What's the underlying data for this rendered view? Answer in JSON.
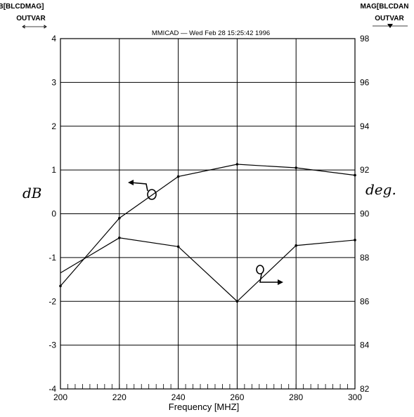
{
  "chart_data": {
    "type": "line",
    "title": "MMICAD — Wed Feb 28 15:25:42 1996",
    "xlabel": "Frequency [MHZ]",
    "x": [
      200,
      220,
      240,
      260,
      280,
      300
    ],
    "x_ticks": [
      "200",
      "220",
      "240",
      "260",
      "280",
      "300"
    ],
    "xlim": [
      200,
      300
    ],
    "y_left": {
      "range": [
        -4,
        4
      ],
      "ticks": [
        "4",
        "3",
        "2",
        "1",
        "0",
        "-1",
        "-2",
        "-3",
        "-4"
      ],
      "header_line1": "B[BLCDMAG]",
      "header_line2": "OUTVAR",
      "hand_label": "dB"
    },
    "y_right": {
      "range": [
        82,
        98
      ],
      "ticks": [
        "98",
        "96",
        "94",
        "92",
        "90",
        "88",
        "86",
        "84",
        "82"
      ],
      "header_line1": "MAG[BLCDAN",
      "header_line2": "OUTVAR",
      "hand_label": "deg."
    },
    "series": [
      {
        "axis": "left",
        "values": [
          -1.65,
          -0.1,
          0.85,
          1.13,
          1.05,
          0.88
        ]
      },
      {
        "axis": "right",
        "values": [
          88.9,
          88.5,
          86.0,
          88.55,
          88.8
        ],
        "x": [
          220,
          240,
          260,
          280,
          300
        ]
      }
    ],
    "extra_left_start": -1.35,
    "grid": true,
    "legend": "none"
  }
}
